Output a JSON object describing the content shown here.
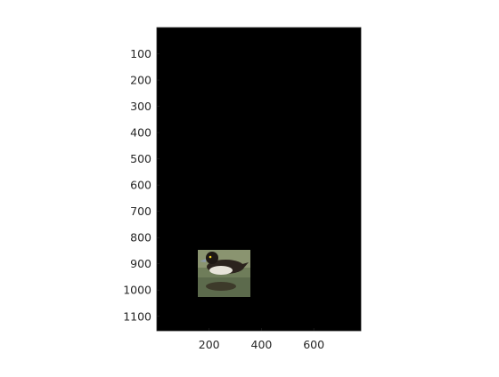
{
  "figure": {
    "background": "#ffffff",
    "axes_background": "#000000",
    "axes_border": "#262626",
    "tick_color": "#262626"
  },
  "image_axes": {
    "x_ticks": [
      "200",
      "400",
      "600"
    ],
    "y_ticks": [
      "100",
      "200",
      "300",
      "400",
      "500",
      "600",
      "700",
      "800",
      "900",
      "1000",
      "1100"
    ],
    "x_range": [
      0,
      780
    ],
    "y_range": [
      0,
      1155
    ],
    "y_reversed": true
  },
  "inset_image": {
    "description_name": "duck-photo",
    "x_range": [
      160,
      360
    ],
    "y_range": [
      845,
      1030
    ]
  }
}
